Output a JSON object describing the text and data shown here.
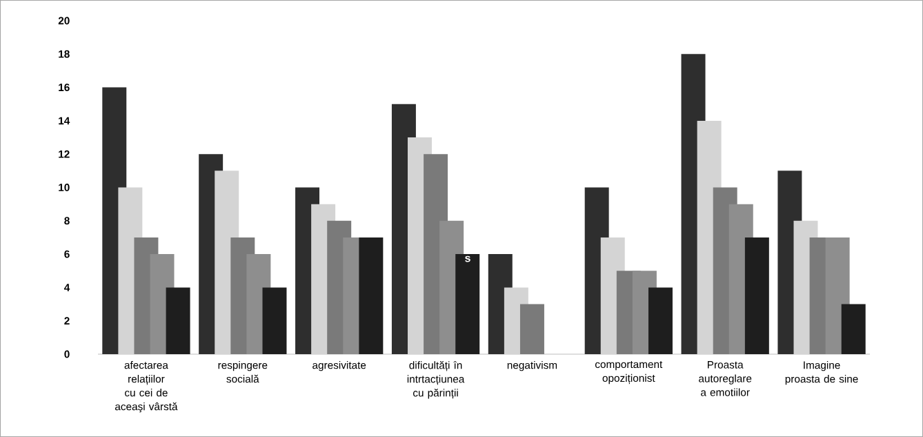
{
  "chart_data": {
    "type": "bar",
    "categories": [
      "afectarea relațiilor cu cei de aceaşi vârstă",
      "respingere socială",
      "agresivitate",
      "dificultăți în intrtacțiunea cu părinții",
      "negativism",
      "comportament opoziționist",
      "Proasta autoreglare a emotiilor",
      "Imagine proasta de sine"
    ],
    "series": [
      {
        "color": "#2e2e2e",
        "values": [
          16,
          12,
          10,
          15,
          6,
          10,
          18,
          11
        ]
      },
      {
        "color": "#d4d4d4",
        "values": [
          10,
          11,
          9,
          13,
          4,
          7,
          14,
          8
        ]
      },
      {
        "color": "#7a7a7a",
        "values": [
          7,
          7,
          8,
          12,
          3,
          5,
          10,
          7
        ]
      },
      {
        "color": "#8e8e8e",
        "values": [
          6,
          6,
          7,
          8,
          null,
          5,
          9,
          7
        ]
      },
      {
        "color": "#1e1e1e",
        "values": [
          4,
          4,
          7,
          6,
          null,
          4,
          7,
          3
        ]
      }
    ],
    "ylim": [
      0,
      20
    ],
    "yticks": [
      0,
      2,
      4,
      6,
      8,
      10,
      12,
      14,
      16,
      18,
      20
    ],
    "annotations": [
      "s"
    ]
  }
}
